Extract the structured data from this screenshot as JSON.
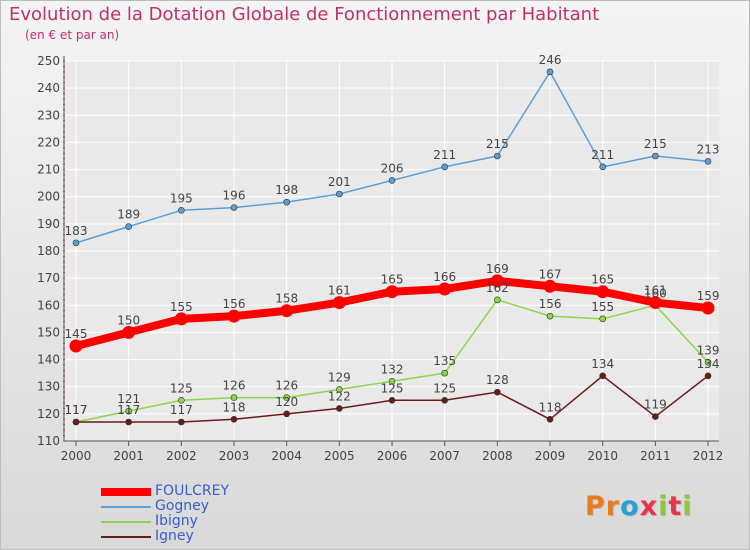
{
  "title": "Evolution de la Dotation Globale de Fonctionnement par Habitant",
  "subtitle": "(en € et par an)",
  "logo": {
    "text": "Proxiti",
    "letter_colors": [
      "#e87d1e",
      "#e87d1e",
      "#2aa1d4",
      "#e8334b",
      "#8dc63f",
      "#e8334b",
      "#8dc63f"
    ]
  },
  "colors": {
    "FOULCREY": "#ff0000",
    "Gogney": "#5b9fd6",
    "Ibigny": "#8cd64a",
    "Igney": "#6b1a1a",
    "axis": "#555555",
    "grid": "#ffffff",
    "label": "#444444",
    "legend_text": "#3a5dcc"
  },
  "chart_data": {
    "type": "line",
    "title": "Evolution de la Dotation Globale de Fonctionnement par Habitant",
    "subtitle": "(en € et par an)",
    "x": [
      "2000",
      "2001",
      "2002",
      "2003",
      "2004",
      "2005",
      "2006",
      "2007",
      "2008",
      "2009",
      "2010",
      "2011",
      "2012"
    ],
    "ylim": [
      110,
      250
    ],
    "yticks": [
      110,
      120,
      130,
      140,
      150,
      160,
      170,
      180,
      190,
      200,
      210,
      220,
      230,
      240,
      250
    ],
    "grid": true,
    "legend_position": "bottom-left",
    "series": [
      {
        "name": "FOULCREY",
        "values": [
          145,
          150,
          155,
          156,
          158,
          161,
          165,
          166,
          169,
          167,
          165,
          161,
          159
        ]
      },
      {
        "name": "Gogney",
        "values": [
          183,
          189,
          195,
          196,
          198,
          201,
          206,
          211,
          215,
          246,
          211,
          215,
          213
        ]
      },
      {
        "name": "Ibigny",
        "values": [
          117,
          121,
          125,
          126,
          126,
          129,
          132,
          135,
          162,
          156,
          155,
          160,
          139
        ]
      },
      {
        "name": "Igney",
        "values": [
          117,
          117,
          117,
          118,
          120,
          122,
          125,
          125,
          128,
          118,
          134,
          119,
          134
        ]
      }
    ]
  }
}
